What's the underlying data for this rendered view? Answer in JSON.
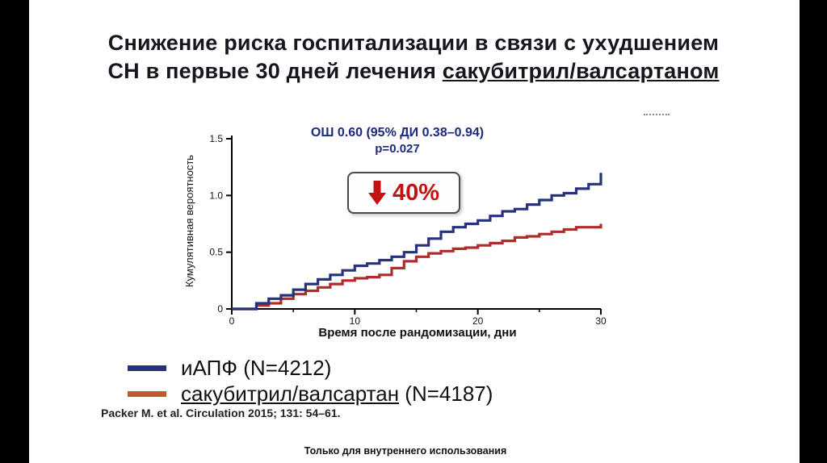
{
  "page": {
    "title_line1": "Снижение риска госпитализации в связи с ухудшением",
    "title_line2_plain": "СН в первые 30 дней лечения ",
    "title_line2_underline": "сакубитрил/валсартаном"
  },
  "annotation": {
    "odds_ratio": "ОШ 0.60 (95% ДИ 0.38–0.94)",
    "p_value": "p=0.027",
    "reduction": "40%"
  },
  "legend": {
    "items": [
      {
        "label": "иАПФ",
        "n_label": " (N=4212)",
        "swatch_color": "#26327d",
        "underline": false
      },
      {
        "label": "сакубитрил/валсартан",
        "n_label": " (N=4187)",
        "swatch_color": "#c2592e",
        "underline": true
      }
    ]
  },
  "citation": "Packer M. et al. Circulation 2015; 131: 54–61.",
  "footer": "Только для внутреннего использования",
  "chart_data": {
    "type": "line",
    "step": true,
    "title": "",
    "xlabel": "Время после рандомизации, дни",
    "ylabel": "Кумулятивная вероятность",
    "xlim": [
      0,
      30
    ],
    "ylim": [
      0,
      1.5
    ],
    "xticks": [
      0,
      10,
      20,
      30
    ],
    "xtick_labels": [
      "0",
      "10",
      "20",
      "30"
    ],
    "xticks_minor": [
      5,
      15,
      25
    ],
    "yticks": [
      0,
      0.5,
      1.0,
      1.5
    ],
    "ytick_labels": [
      "0",
      "0.5",
      "1.0",
      "1.5"
    ],
    "grid": false,
    "legend_position": "below-left",
    "series": [
      {
        "name": "иАПФ (N=4212)",
        "color": "#26327d",
        "x": [
          0,
          2,
          3,
          4,
          5,
          6,
          7,
          8,
          9,
          10,
          11,
          12,
          13,
          14,
          15,
          16,
          17,
          18,
          19,
          20,
          21,
          22,
          23,
          24,
          25,
          26,
          27,
          28,
          29,
          30
        ],
        "y": [
          0,
          0.05,
          0.09,
          0.12,
          0.17,
          0.22,
          0.26,
          0.3,
          0.34,
          0.38,
          0.4,
          0.43,
          0.46,
          0.5,
          0.56,
          0.62,
          0.68,
          0.72,
          0.75,
          0.78,
          0.82,
          0.86,
          0.88,
          0.92,
          0.96,
          1.0,
          1.02,
          1.06,
          1.1,
          1.2
        ]
      },
      {
        "name": "сакубитрил/валсартан (N=4187)",
        "color": "#b22a2a",
        "x": [
          0,
          2,
          3,
          4,
          5,
          6,
          7,
          8,
          9,
          10,
          11,
          12,
          13,
          14,
          15,
          16,
          17,
          18,
          19,
          20,
          21,
          22,
          23,
          24,
          25,
          26,
          27,
          28,
          29,
          30
        ],
        "y": [
          0,
          0.03,
          0.05,
          0.09,
          0.13,
          0.16,
          0.19,
          0.22,
          0.25,
          0.27,
          0.28,
          0.3,
          0.36,
          0.42,
          0.46,
          0.49,
          0.51,
          0.53,
          0.54,
          0.56,
          0.58,
          0.6,
          0.63,
          0.64,
          0.66,
          0.68,
          0.7,
          0.72,
          0.72,
          0.75
        ]
      }
    ]
  }
}
